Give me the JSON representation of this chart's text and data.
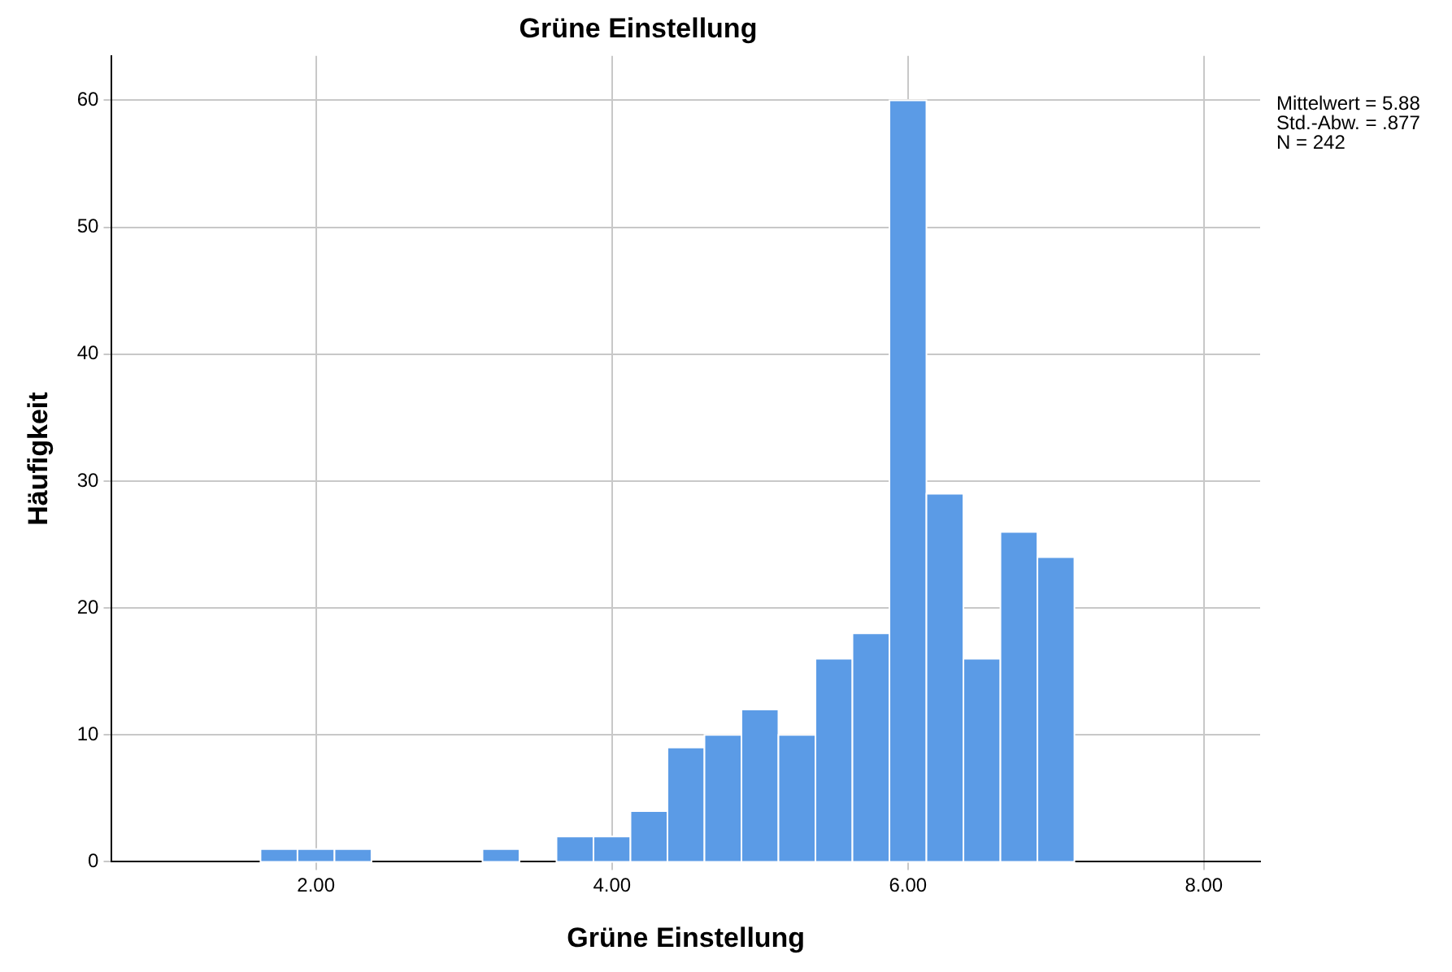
{
  "chart_data": {
    "type": "histogram",
    "title": "Grüne Einstellung",
    "xlabel": "Grüne Einstellung",
    "ylabel": "Häufigkeit",
    "bins": [
      1.625,
      1.875,
      2.125,
      2.375,
      2.625,
      2.875,
      3.125,
      3.375,
      3.625,
      3.875,
      4.125,
      4.375,
      4.625,
      4.875,
      5.125,
      5.375,
      5.625,
      5.875,
      6.125,
      6.375,
      6.625,
      6.875,
      7.125
    ],
    "values": [
      1,
      1,
      1,
      0,
      0,
      0,
      1,
      0,
      2,
      2,
      4,
      9,
      10,
      12,
      10,
      16,
      18,
      60,
      29,
      16,
      26,
      24
    ],
    "color": "#5b9be6",
    "xlim": [
      0.62,
      8.38
    ],
    "xticks": [
      {
        "value": 2,
        "label": "2.00"
      },
      {
        "value": 4,
        "label": "4.00"
      },
      {
        "value": 6,
        "label": "6.00"
      },
      {
        "value": 8,
        "label": "8.00"
      }
    ],
    "ylim": [
      0,
      63.5
    ],
    "yticks": [
      0,
      10,
      20,
      30,
      40,
      50,
      60
    ],
    "grid": true,
    "legend": false,
    "annotations": [
      "Mittelwert = 5.88",
      "Std.-Abw. = .877",
      "N = 242"
    ]
  }
}
